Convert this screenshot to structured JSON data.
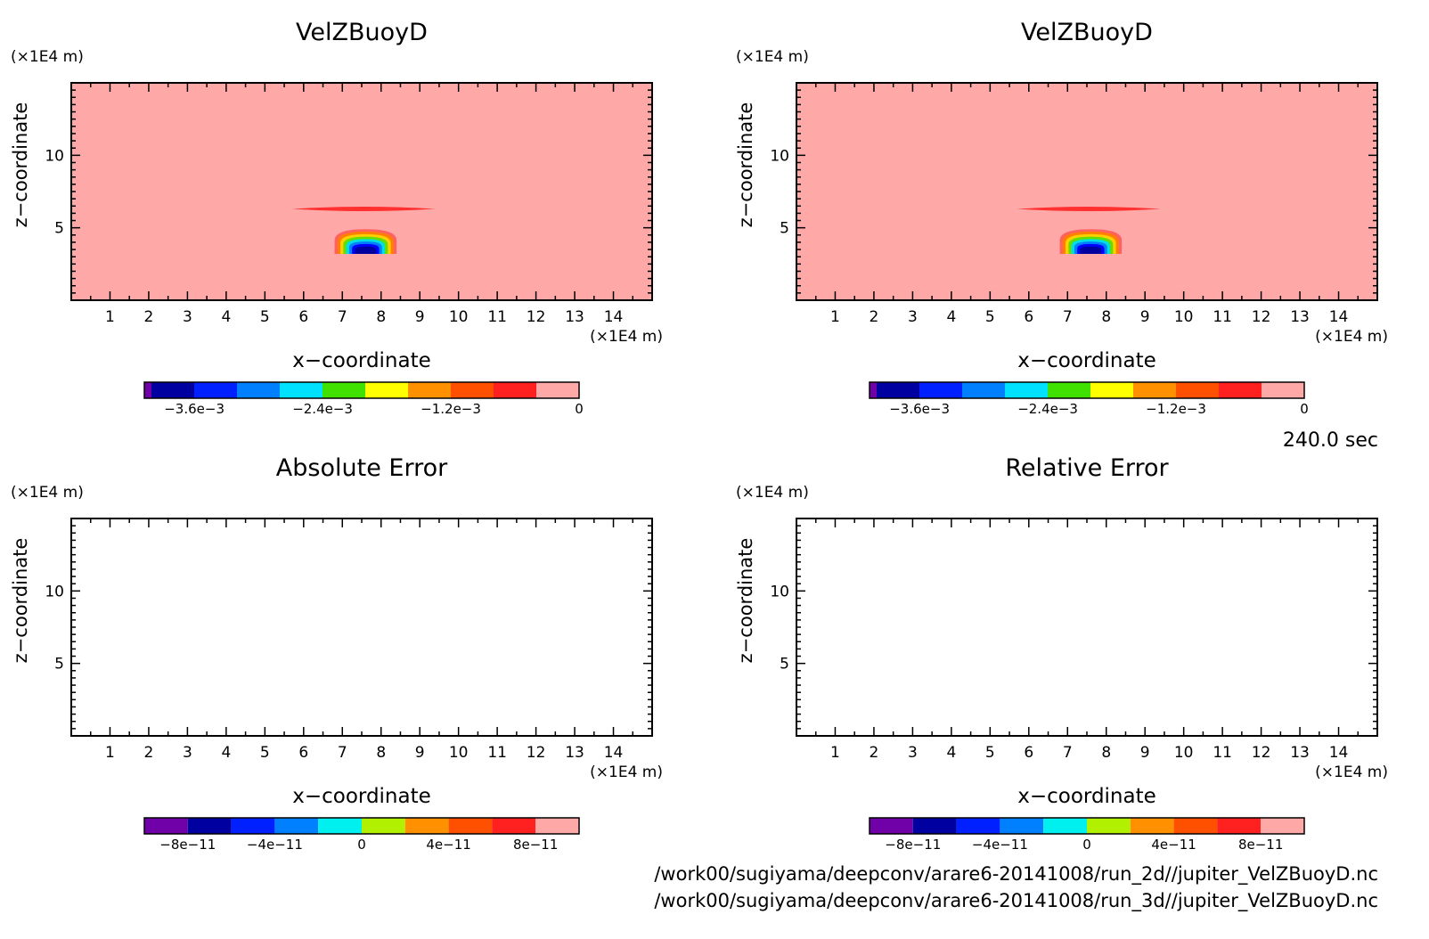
{
  "colors": {
    "background": "#ffffa8a8",
    "frame": "#000000"
  },
  "time_label": "240.0 sec",
  "footer": {
    "line1": "/work00/sugiyama/deepconv/arare6-20141008/run_2d//jupiter_VelZBuoyD.nc",
    "line2": "/work00/sugiyama/deepconv/arare6-20141008/run_3d//jupiter_VelZBuoyD.nc"
  },
  "chart_data": [
    {
      "type": "heatmap",
      "title": "VelZBuoyD",
      "xlabel": "x−coordinate",
      "ylabel": "z−coordinate",
      "x_unit": "(×1E4 m)",
      "y_unit": "(×1E4 m)",
      "xlim": [
        0,
        15
      ],
      "ylim": [
        0,
        15
      ],
      "xticks": [
        "1",
        "2",
        "3",
        "4",
        "5",
        "6",
        "7",
        "8",
        "9",
        "10",
        "11",
        "12",
        "13",
        "14"
      ],
      "yticks": [
        "5",
        "10"
      ],
      "background": "#ffa8a8",
      "features": [
        {
          "kind": "streak",
          "x": [
            5.7,
            9.4
          ],
          "z": 6.3,
          "color": "#ff3030"
        },
        {
          "kind": "blob",
          "x": [
            6.8,
            8.4
          ],
          "z": [
            3.2,
            4.9
          ],
          "levels": [
            "#ff6060",
            "#ff8000",
            "#ffd000",
            "#66dd00",
            "#00e0e0",
            "#0080ff",
            "#0000ff",
            "#0000a0"
          ]
        }
      ],
      "colorbar": {
        "colors": [
          "#7000a8",
          "#0000a0",
          "#0020ff",
          "#0080ff",
          "#00e0ff",
          "#40e000",
          "#ffff00",
          "#ff9000",
          "#ff5000",
          "#ff2020",
          "#ffa8a8"
        ],
        "tick_labels": [
          "−3.6e−3",
          "−2.4e−3",
          "−1.2e−3",
          "0"
        ]
      }
    },
    {
      "type": "heatmap",
      "title": "VelZBuoyD",
      "xlabel": "x−coordinate",
      "ylabel": "z−coordinate",
      "x_unit": "(×1E4 m)",
      "y_unit": "(×1E4 m)",
      "xlim": [
        0,
        15
      ],
      "ylim": [
        0,
        15
      ],
      "xticks": [
        "1",
        "2",
        "3",
        "4",
        "5",
        "6",
        "7",
        "8",
        "9",
        "10",
        "11",
        "12",
        "13",
        "14"
      ],
      "yticks": [
        "5",
        "10"
      ],
      "background": "#ffa8a8",
      "features": [
        {
          "kind": "streak",
          "x": [
            5.7,
            9.4
          ],
          "z": 6.3,
          "color": "#ff3030"
        },
        {
          "kind": "blob",
          "x": [
            6.8,
            8.4
          ],
          "z": [
            3.2,
            4.9
          ],
          "levels": [
            "#ff6060",
            "#ff8000",
            "#ffd000",
            "#66dd00",
            "#00e0e0",
            "#0080ff",
            "#0000ff",
            "#0000a0"
          ]
        }
      ],
      "colorbar": {
        "colors": [
          "#7000a8",
          "#0000a0",
          "#0020ff",
          "#0080ff",
          "#00e0ff",
          "#40e000",
          "#ffff00",
          "#ff9000",
          "#ff5000",
          "#ff2020",
          "#ffa8a8"
        ],
        "tick_labels": [
          "−3.6e−3",
          "−2.4e−3",
          "−1.2e−3",
          "0"
        ]
      }
    },
    {
      "type": "heatmap",
      "title": "Absolute Error",
      "xlabel": "x−coordinate",
      "ylabel": "z−coordinate",
      "x_unit": "(×1E4 m)",
      "y_unit": "(×1E4 m)",
      "xlim": [
        0,
        15
      ],
      "ylim": [
        0,
        15
      ],
      "xticks": [
        "1",
        "2",
        "3",
        "4",
        "5",
        "6",
        "7",
        "8",
        "9",
        "10",
        "11",
        "12",
        "13",
        "14"
      ],
      "yticks": [
        "5",
        "10"
      ],
      "background": "#ffffff",
      "features": [],
      "colorbar": {
        "colors": [
          "#7000a8",
          "#0000a0",
          "#0020ff",
          "#0080ff",
          "#00f0f0",
          "#b0f000",
          "#ff9000",
          "#ff5000",
          "#ff2020",
          "#ffa8a8"
        ],
        "tick_labels": [
          "−8e−11",
          "−4e−11",
          "0",
          "4e−11",
          "8e−11"
        ]
      }
    },
    {
      "type": "heatmap",
      "title": "Relative Error",
      "xlabel": "x−coordinate",
      "ylabel": "z−coordinate",
      "x_unit": "(×1E4 m)",
      "y_unit": "(×1E4 m)",
      "xlim": [
        0,
        15
      ],
      "ylim": [
        0,
        15
      ],
      "xticks": [
        "1",
        "2",
        "3",
        "4",
        "5",
        "6",
        "7",
        "8",
        "9",
        "10",
        "11",
        "12",
        "13",
        "14"
      ],
      "yticks": [
        "5",
        "10"
      ],
      "background": "#ffffff",
      "features": [],
      "colorbar": {
        "colors": [
          "#7000a8",
          "#0000a0",
          "#0020ff",
          "#0080ff",
          "#00f0f0",
          "#b0f000",
          "#ff9000",
          "#ff5000",
          "#ff2020",
          "#ffa8a8"
        ],
        "tick_labels": [
          "−8e−11",
          "−4e−11",
          "0",
          "4e−11",
          "8e−11"
        ]
      }
    }
  ]
}
